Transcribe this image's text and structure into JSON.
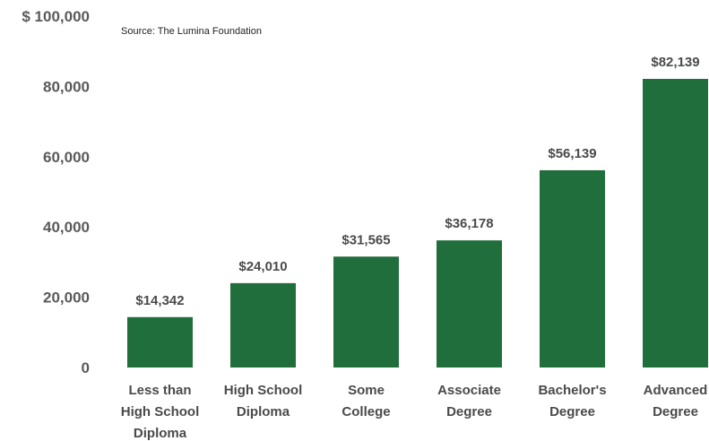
{
  "source": "Source: The Lumina Foundation",
  "colors": {
    "bar": "#1f6e3b",
    "text": "#4a4a4a"
  },
  "chart_data": {
    "type": "bar",
    "categories": [
      [
        "Less than",
        "High School",
        "Diploma"
      ],
      [
        "High School",
        "Diploma"
      ],
      [
        "Some",
        "College"
      ],
      [
        "Associate",
        "Degree"
      ],
      [
        "Bachelor's",
        "Degree"
      ],
      [
        "Advanced",
        "Degree"
      ]
    ],
    "values": [
      14342,
      24010,
      31565,
      36178,
      56139,
      82139
    ],
    "value_labels": [
      "$14,342",
      "$24,010",
      "$31,565",
      "$36,178",
      "$56,139",
      "$82,139"
    ],
    "y_ticks": [
      0,
      20000,
      40000,
      60000,
      80000,
      100000
    ],
    "y_tick_labels": [
      "0",
      "20,000",
      "40,000",
      "60,000",
      "80,000",
      "$ 100,000"
    ],
    "ylim": [
      0,
      100000
    ],
    "grid": false,
    "legend": "none"
  }
}
